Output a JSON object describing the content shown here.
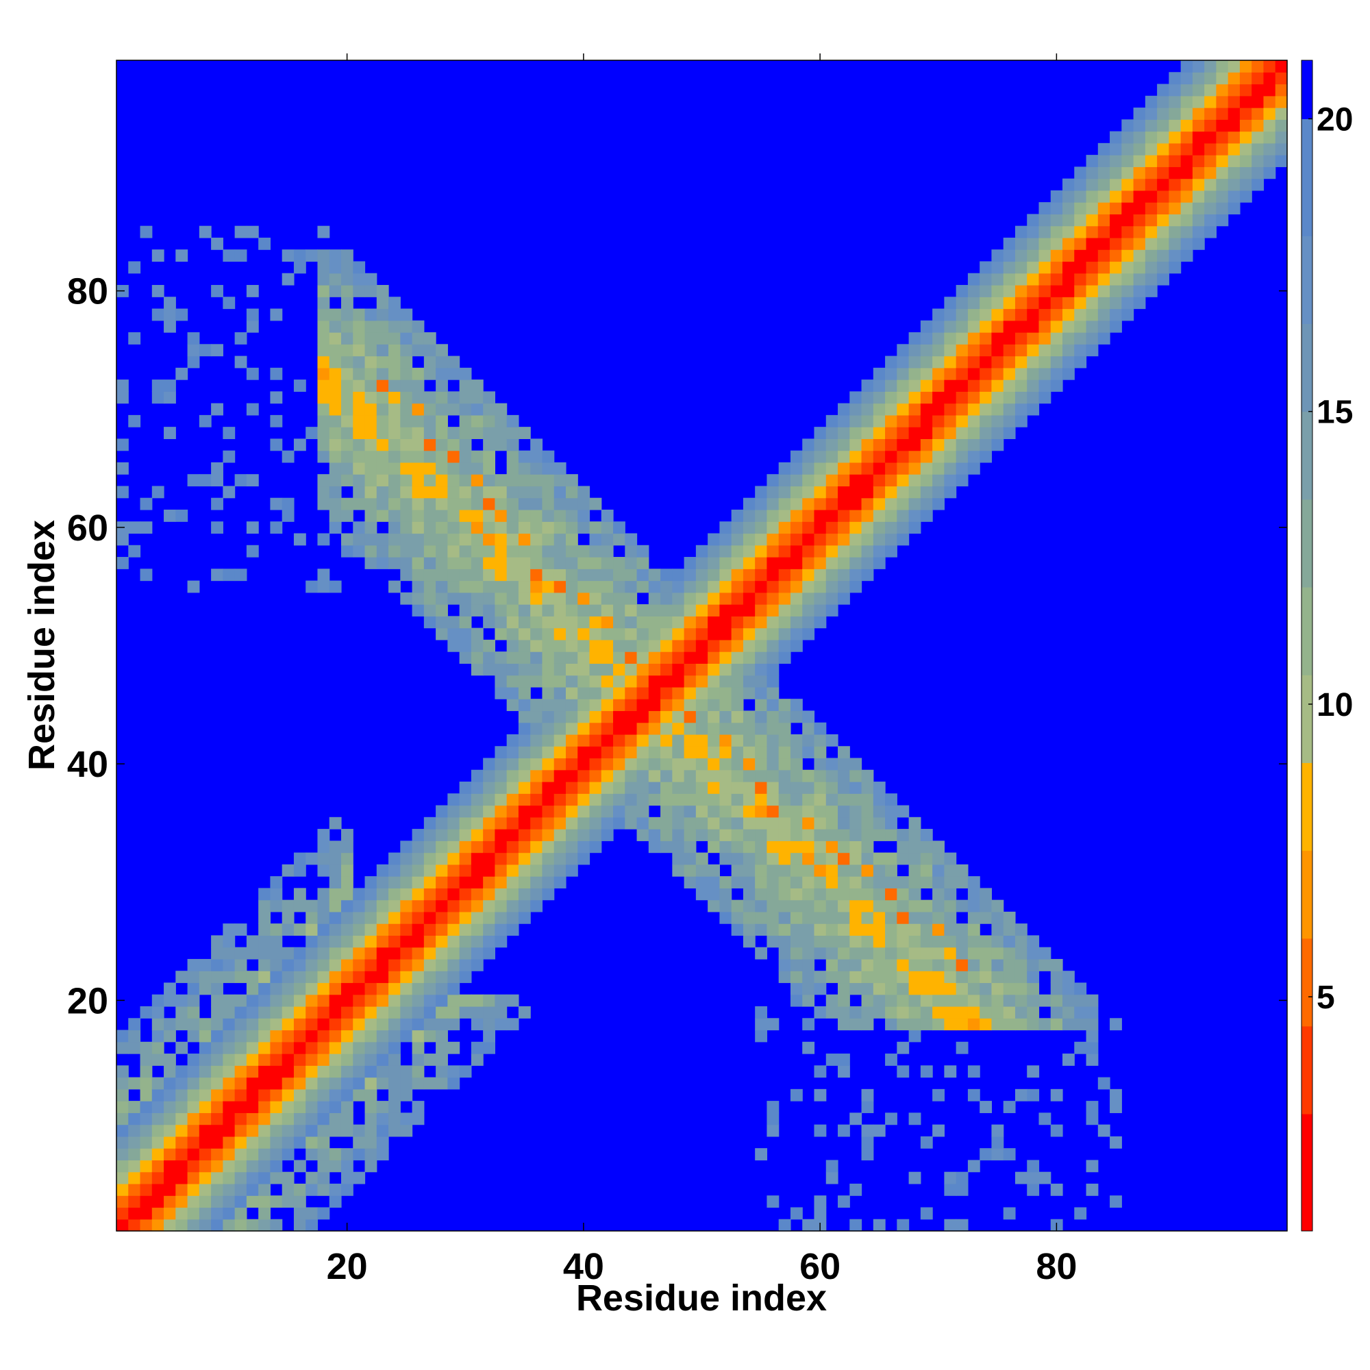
{
  "chart_data": {
    "type": "heatmap",
    "title": "",
    "xlabel": "Residue index",
    "ylabel": "Residue index",
    "x_range": [
      0.5,
      99.5
    ],
    "y_range": [
      0.5,
      99.5
    ],
    "n_residues": 99,
    "x_ticks": [
      20,
      40,
      60,
      80
    ],
    "x_tick_labels": [
      "20",
      "40",
      "60",
      "80"
    ],
    "y_ticks": [
      20,
      40,
      60,
      80
    ],
    "y_tick_labels": [
      "20",
      "40",
      "60",
      "80"
    ],
    "colorbar": {
      "range": [
        1,
        21
      ],
      "ticks": [
        5,
        10,
        15,
        20
      ],
      "tick_labels": [
        "5",
        "10",
        "15",
        "20"
      ],
      "levels": [
        {
          "max": 3,
          "color": "#ff0000"
        },
        {
          "max": 4.5,
          "color": "#ff3a00"
        },
        {
          "max": 6,
          "color": "#ff6a00"
        },
        {
          "max": 7.5,
          "color": "#ff9500"
        },
        {
          "max": 9,
          "color": "#ffb300"
        },
        {
          "max": 10.5,
          "color": "#a6bb85"
        },
        {
          "max": 12,
          "color": "#94b38c"
        },
        {
          "max": 13.5,
          "color": "#85a899"
        },
        {
          "max": 15,
          "color": "#7a9faa"
        },
        {
          "max": 16.5,
          "color": "#6e95b6"
        },
        {
          "max": 18,
          "color": "#6690c4"
        },
        {
          "max": 20,
          "color": "#5b88c9"
        },
        {
          "max": 21,
          "color": "#0000ff"
        }
      ]
    },
    "background_color": "#0000ff",
    "main_band": {
      "peak_value": 1,
      "max_distance": 8.5,
      "slope": 2.2
    },
    "contact_band": {
      "center_sum": 91,
      "start": 20,
      "end": 70,
      "half_width": 12
    },
    "contact_band_lower_extension": {
      "range": [
        5,
        20
      ],
      "note_free": true
    },
    "contact_hotspots": [
      [
        23,
        72
      ],
      [
        24,
        71
      ],
      [
        26,
        70
      ],
      [
        27,
        67
      ],
      [
        29,
        66
      ],
      [
        31,
        64
      ],
      [
        32,
        62
      ],
      [
        33,
        61
      ],
      [
        35,
        59
      ],
      [
        36,
        56
      ],
      [
        38,
        55
      ],
      [
        40,
        54
      ],
      [
        42,
        52
      ],
      [
        44,
        49
      ],
      [
        45,
        47
      ]
    ]
  }
}
